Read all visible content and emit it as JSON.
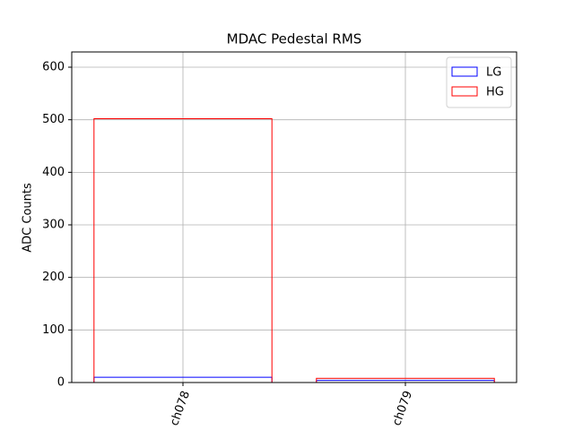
{
  "chart_data": {
    "type": "bar",
    "title": "MDAC Pedestal RMS",
    "y_label": "ADC Counts",
    "categories": [
      "ch078",
      "ch079"
    ],
    "series": [
      {
        "name": "LG",
        "color": "#0000ff",
        "values": [
          10,
          4
        ]
      },
      {
        "name": "HG",
        "color": "#ff0000",
        "values": [
          502,
          8
        ]
      }
    ],
    "ylim": [
      0,
      629
    ],
    "yticks": [
      0,
      100,
      200,
      300,
      400,
      500,
      600
    ],
    "grid": true,
    "legend": "upper right"
  }
}
